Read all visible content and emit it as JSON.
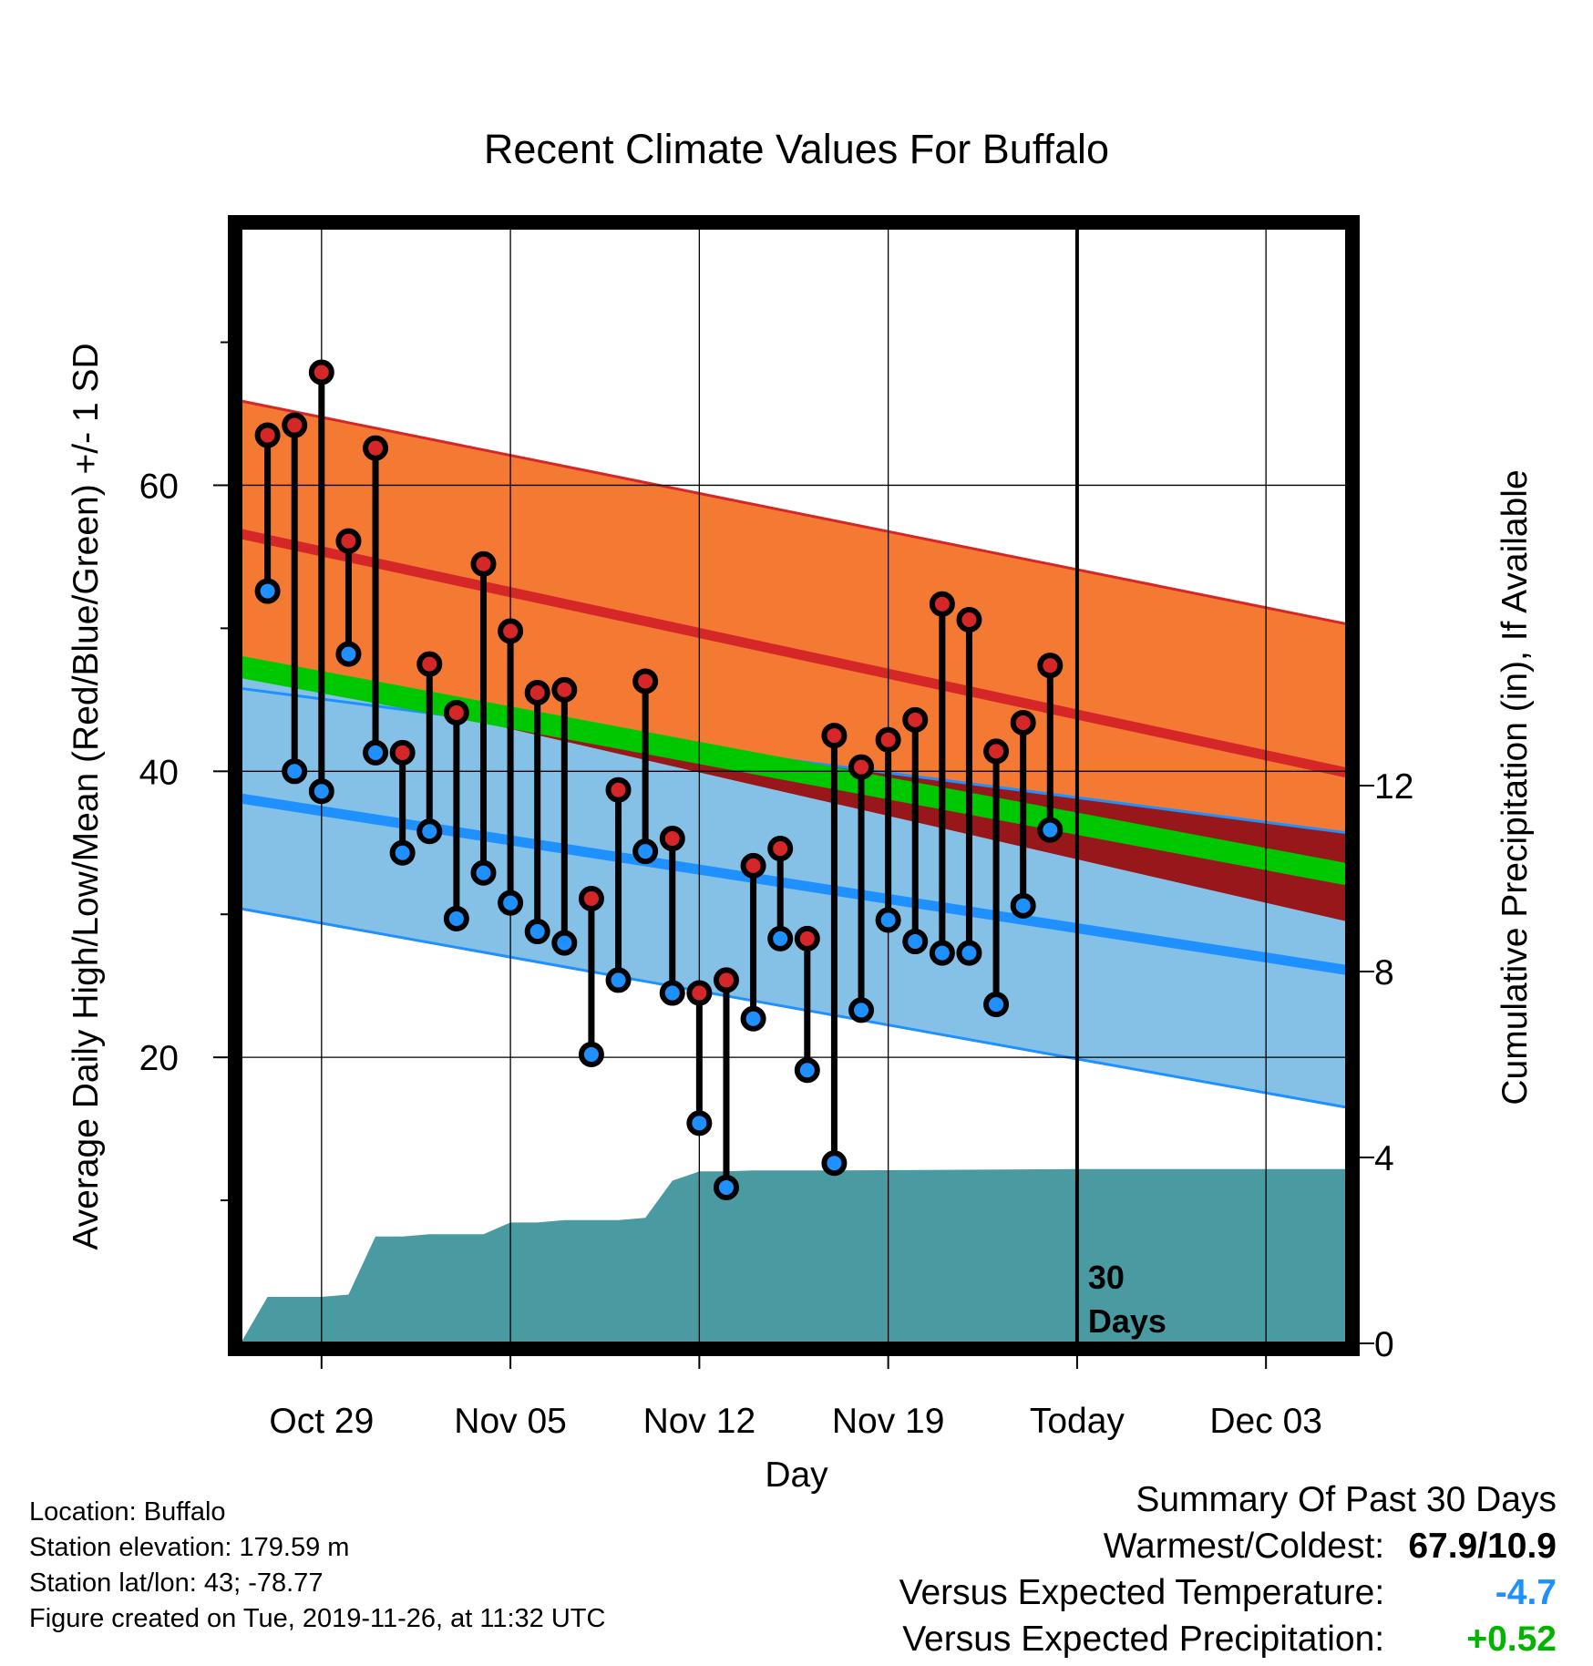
{
  "chart_data": {
    "type": "line",
    "title": "Recent Climate Values For Buffalo",
    "xlabel": "Day",
    "ylabel_left": "Average Daily High/Low/Mean (Red/Blue/Green) +/- 1 SD",
    "ylabel_right": "Cumulative Precipitation (in), If Available",
    "x_range": [
      "2019-10-26",
      "2019-12-06"
    ],
    "ylim_left": [
      0,
      78
    ],
    "ylim_right": [
      0,
      24
    ],
    "grid": true,
    "x_ticks": [
      {
        "date": "2019-10-29",
        "label": "Oct 29"
      },
      {
        "date": "2019-11-05",
        "label": "Nov 05"
      },
      {
        "date": "2019-11-12",
        "label": "Nov 12"
      },
      {
        "date": "2019-11-19",
        "label": "Nov 19"
      },
      {
        "date": "2019-11-26",
        "label": "Today"
      },
      {
        "date": "2019-12-03",
        "label": "Dec 03"
      }
    ],
    "y_ticks_left": [
      20,
      40,
      60
    ],
    "y_ticks_right": [
      0,
      4,
      8,
      12
    ],
    "today_marker": {
      "date": "2019-11-26",
      "label_line1": "30",
      "label_line2": "Days"
    },
    "normals": {
      "start_date": "2019-10-26",
      "end_date": "2019-12-06",
      "high_plus_sd": [
        65.9,
        50.3
      ],
      "high_mean": [
        56.6,
        39.9
      ],
      "high_minus_sd": [
        47.3,
        29.5
      ],
      "mean": [
        47.3,
        32.8
      ],
      "low_plus_sd": [
        45.8,
        35.7
      ],
      "low_mean": [
        38.1,
        26.1
      ],
      "low_minus_sd": [
        30.4,
        16.5
      ]
    },
    "daily": [
      {
        "date": "2019-10-27",
        "high": 63.5,
        "low": 52.6
      },
      {
        "date": "2019-10-28",
        "high": 64.2,
        "low": 40.0
      },
      {
        "date": "2019-10-29",
        "high": 67.9,
        "low": 38.6
      },
      {
        "date": "2019-10-30",
        "high": 56.1,
        "low": 48.2
      },
      {
        "date": "2019-10-31",
        "high": 62.6,
        "low": 41.3
      },
      {
        "date": "2019-11-01",
        "high": 41.3,
        "low": 34.3
      },
      {
        "date": "2019-11-02",
        "high": 47.5,
        "low": 35.8
      },
      {
        "date": "2019-11-03",
        "high": 44.1,
        "low": 29.7
      },
      {
        "date": "2019-11-04",
        "high": 54.5,
        "low": 32.9
      },
      {
        "date": "2019-11-05",
        "high": 49.8,
        "low": 30.8
      },
      {
        "date": "2019-11-06",
        "high": 45.5,
        "low": 28.8
      },
      {
        "date": "2019-11-07",
        "high": 45.7,
        "low": 28.0
      },
      {
        "date": "2019-11-08",
        "high": 31.1,
        "low": 20.2
      },
      {
        "date": "2019-11-09",
        "high": 38.7,
        "low": 25.4
      },
      {
        "date": "2019-11-10",
        "high": 46.3,
        "low": 34.4
      },
      {
        "date": "2019-11-11",
        "high": 35.3,
        "low": 24.5
      },
      {
        "date": "2019-11-12",
        "high": 24.5,
        "low": 15.4
      },
      {
        "date": "2019-11-13",
        "high": 25.4,
        "low": 10.9
      },
      {
        "date": "2019-11-14",
        "high": 33.4,
        "low": 22.7
      },
      {
        "date": "2019-11-15",
        "high": 34.6,
        "low": 28.3
      },
      {
        "date": "2019-11-16",
        "high": 28.3,
        "low": 19.1
      },
      {
        "date": "2019-11-17",
        "high": 42.5,
        "low": 12.6
      },
      {
        "date": "2019-11-18",
        "high": 40.3,
        "low": 23.3
      },
      {
        "date": "2019-11-19",
        "high": 42.2,
        "low": 29.6
      },
      {
        "date": "2019-11-20",
        "high": 43.6,
        "low": 28.1
      },
      {
        "date": "2019-11-21",
        "high": 51.7,
        "low": 27.3
      },
      {
        "date": "2019-11-22",
        "high": 50.6,
        "low": 27.3
      },
      {
        "date": "2019-11-23",
        "high": 41.4,
        "low": 23.7
      },
      {
        "date": "2019-11-24",
        "high": 43.4,
        "low": 30.6
      },
      {
        "date": "2019-11-25",
        "high": 47.4,
        "low": 35.9
      }
    ],
    "cumulative_precip": [
      {
        "date": "2019-10-26",
        "value": 0.0
      },
      {
        "date": "2019-10-27",
        "value": 1.0
      },
      {
        "date": "2019-10-28",
        "value": 1.0
      },
      {
        "date": "2019-10-29",
        "value": 1.0
      },
      {
        "date": "2019-10-30",
        "value": 1.05
      },
      {
        "date": "2019-10-31",
        "value": 2.3
      },
      {
        "date": "2019-11-01",
        "value": 2.3
      },
      {
        "date": "2019-11-02",
        "value": 2.35
      },
      {
        "date": "2019-11-03",
        "value": 2.35
      },
      {
        "date": "2019-11-04",
        "value": 2.35
      },
      {
        "date": "2019-11-05",
        "value": 2.6
      },
      {
        "date": "2019-11-06",
        "value": 2.6
      },
      {
        "date": "2019-11-07",
        "value": 2.65
      },
      {
        "date": "2019-11-08",
        "value": 2.65
      },
      {
        "date": "2019-11-09",
        "value": 2.65
      },
      {
        "date": "2019-11-10",
        "value": 2.7
      },
      {
        "date": "2019-11-11",
        "value": 3.5
      },
      {
        "date": "2019-11-12",
        "value": 3.7
      },
      {
        "date": "2019-11-13",
        "value": 3.7
      },
      {
        "date": "2019-11-14",
        "value": 3.72
      },
      {
        "date": "2019-11-17",
        "value": 3.72
      },
      {
        "date": "2019-11-26",
        "value": 3.75
      },
      {
        "date": "2019-12-06",
        "value": 3.75
      }
    ],
    "colors": {
      "high_band": "#f47a33",
      "high_line": "#d62728",
      "low_band": "#85c0e6",
      "low_line": "#1e90ff",
      "overlap_band": "#98171b",
      "mean_band": "#00c800",
      "precip": "#4a9aa2",
      "high_marker": "#d62728",
      "low_marker": "#1e90ff"
    }
  },
  "footer": {
    "location": "Location: Buffalo",
    "elevation": "Station elevation: 179.59 m",
    "latlon": "Station lat/lon: 43; -78.77",
    "created": "Figure created on Tue, 2019-11-26, at 11:32 UTC"
  },
  "summary": {
    "title": "Summary Of Past 30 Days",
    "warmest_coldest_label": "Warmest/Coldest:",
    "warmest_coldest_value": "67.9/10.9",
    "temp_label": "Versus Expected Temperature:",
    "temp_value": "-4.7",
    "temp_color": "#1e90ff",
    "precip_label": "Versus Expected Precipitation:",
    "precip_value": "+0.52",
    "precip_color": "#00b400"
  }
}
